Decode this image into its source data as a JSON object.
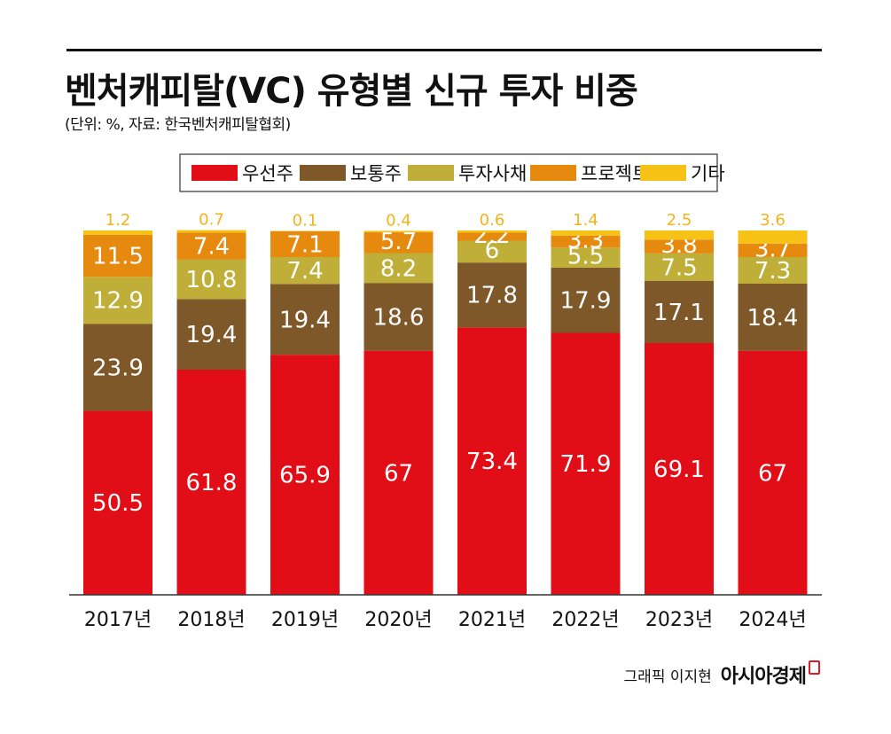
{
  "header": {
    "title": "벤처캐피탈(VC) 유형별 신규 투자 비중",
    "subtitle": "(단위: %, 자료: 한국벤처캐피탈협회)"
  },
  "chart_data": {
    "type": "bar",
    "stacked": true,
    "title": "벤처캐피탈(VC) 유형별 신규 투자 비중",
    "unit": "%",
    "categories": [
      "2017년",
      "2018년",
      "2019년",
      "2020년",
      "2021년",
      "2022년",
      "2023년",
      "2024년"
    ],
    "series": [
      {
        "name": "우선주",
        "color": "#e10e17",
        "values": [
          50.5,
          61.8,
          65.9,
          67,
          73.4,
          71.9,
          69.1,
          67
        ]
      },
      {
        "name": "보통주",
        "color": "#7f5829",
        "values": [
          23.9,
          19.4,
          19.4,
          18.6,
          17.8,
          17.9,
          17.1,
          18.4
        ]
      },
      {
        "name": "투자사채",
        "color": "#bfae38",
        "values": [
          12.9,
          10.8,
          7.4,
          8.2,
          6,
          5.5,
          7.5,
          7.3
        ]
      },
      {
        "name": "프로젝트",
        "color": "#e5890f",
        "values": [
          11.5,
          7.4,
          7.1,
          5.7,
          2.2,
          3.3,
          3.8,
          3.7
        ]
      },
      {
        "name": "기타",
        "color": "#f6c215",
        "values": [
          1.2,
          0.7,
          0.1,
          0.4,
          0.6,
          1.4,
          2.5,
          3.6
        ]
      }
    ],
    "ylim": [
      0,
      100
    ],
    "legend": "top-center"
  },
  "footer": {
    "credit": "그래픽 이지현",
    "brand": "아시아경제"
  }
}
